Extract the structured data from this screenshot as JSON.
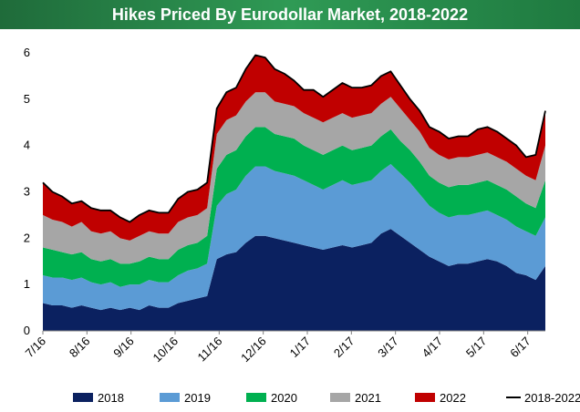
{
  "chart_data": {
    "type": "area",
    "stacked": true,
    "title": "Hikes Priced By Eurodollar Market, 2018-2022",
    "xlabel": "",
    "ylabel": "",
    "ylim": [
      0,
      6
    ],
    "yticks": [
      "0",
      "1",
      "2",
      "3",
      "4",
      "5",
      "6"
    ],
    "xticks": [
      "7/16",
      "8/16",
      "9/16",
      "10/16",
      "11/16",
      "12/16",
      "1/17",
      "2/17",
      "3/17",
      "4/17",
      "5/17",
      "6/17"
    ],
    "x": [
      "7/1",
      "7/8",
      "7/15",
      "7/22",
      "7/29",
      "8/5",
      "8/12",
      "8/19",
      "8/26",
      "9/2",
      "9/9",
      "9/16",
      "9/23",
      "9/30",
      "10/7",
      "10/14",
      "10/21",
      "10/28",
      "11/4",
      "11/11",
      "11/18",
      "11/25",
      "12/2",
      "12/9",
      "12/16",
      "12/23",
      "12/30",
      "1/6",
      "1/13",
      "1/20",
      "1/27",
      "2/3",
      "2/10",
      "2/17",
      "2/24",
      "3/3",
      "3/10",
      "3/17",
      "3/24",
      "3/31",
      "4/7",
      "4/14",
      "4/21",
      "4/28",
      "5/5",
      "5/12",
      "5/19",
      "5/26",
      "6/2",
      "6/9",
      "6/16",
      "6/23",
      "6/30"
    ],
    "series": [
      {
        "name": "2018",
        "color": "#0b2160",
        "values": [
          0.6,
          0.55,
          0.55,
          0.5,
          0.55,
          0.5,
          0.45,
          0.5,
          0.45,
          0.5,
          0.45,
          0.55,
          0.5,
          0.5,
          0.6,
          0.65,
          0.7,
          0.75,
          1.55,
          1.65,
          1.7,
          1.9,
          2.05,
          2.05,
          2.0,
          1.95,
          1.9,
          1.85,
          1.8,
          1.75,
          1.8,
          1.85,
          1.8,
          1.85,
          1.9,
          2.1,
          2.2,
          2.05,
          1.9,
          1.75,
          1.6,
          1.5,
          1.4,
          1.45,
          1.45,
          1.5,
          1.55,
          1.5,
          1.4,
          1.25,
          1.2,
          1.1,
          1.4
        ]
      },
      {
        "name": "2019",
        "color": "#5b9bd5",
        "values": [
          0.6,
          0.6,
          0.6,
          0.6,
          0.6,
          0.55,
          0.55,
          0.55,
          0.5,
          0.5,
          0.55,
          0.55,
          0.55,
          0.55,
          0.6,
          0.65,
          0.65,
          0.7,
          1.15,
          1.3,
          1.35,
          1.45,
          1.5,
          1.5,
          1.45,
          1.45,
          1.45,
          1.4,
          1.35,
          1.3,
          1.35,
          1.4,
          1.35,
          1.35,
          1.35,
          1.35,
          1.4,
          1.35,
          1.3,
          1.2,
          1.1,
          1.05,
          1.05,
          1.05,
          1.05,
          1.05,
          1.05,
          1.0,
          1.0,
          1.0,
          0.95,
          0.95,
          1.05
        ]
      },
      {
        "name": "2020",
        "color": "#00b050",
        "values": [
          0.6,
          0.6,
          0.55,
          0.55,
          0.55,
          0.5,
          0.5,
          0.5,
          0.5,
          0.45,
          0.5,
          0.5,
          0.5,
          0.5,
          0.55,
          0.55,
          0.55,
          0.6,
          0.8,
          0.85,
          0.85,
          0.85,
          0.85,
          0.85,
          0.8,
          0.8,
          0.8,
          0.75,
          0.75,
          0.75,
          0.75,
          0.75,
          0.75,
          0.75,
          0.75,
          0.75,
          0.75,
          0.7,
          0.7,
          0.7,
          0.65,
          0.65,
          0.65,
          0.65,
          0.65,
          0.65,
          0.65,
          0.65,
          0.65,
          0.65,
          0.6,
          0.6,
          0.8
        ]
      },
      {
        "name": "2021",
        "color": "#a6a6a6",
        "values": [
          0.7,
          0.65,
          0.65,
          0.6,
          0.65,
          0.6,
          0.6,
          0.6,
          0.55,
          0.5,
          0.55,
          0.55,
          0.55,
          0.55,
          0.6,
          0.6,
          0.6,
          0.6,
          0.75,
          0.75,
          0.75,
          0.75,
          0.75,
          0.75,
          0.7,
          0.7,
          0.7,
          0.7,
          0.7,
          0.7,
          0.7,
          0.7,
          0.7,
          0.7,
          0.7,
          0.7,
          0.7,
          0.7,
          0.65,
          0.65,
          0.6,
          0.6,
          0.6,
          0.6,
          0.6,
          0.6,
          0.6,
          0.6,
          0.6,
          0.6,
          0.6,
          0.6,
          0.75
        ]
      },
      {
        "name": "2022",
        "color": "#c00000",
        "values": [
          0.7,
          0.6,
          0.55,
          0.5,
          0.45,
          0.5,
          0.5,
          0.45,
          0.45,
          0.4,
          0.45,
          0.45,
          0.45,
          0.45,
          0.5,
          0.55,
          0.55,
          0.55,
          0.55,
          0.6,
          0.6,
          0.7,
          0.8,
          0.75,
          0.7,
          0.65,
          0.55,
          0.5,
          0.6,
          0.55,
          0.6,
          0.65,
          0.65,
          0.6,
          0.6,
          0.6,
          0.55,
          0.5,
          0.45,
          0.45,
          0.45,
          0.5,
          0.45,
          0.45,
          0.45,
          0.55,
          0.55,
          0.55,
          0.5,
          0.5,
          0.4,
          0.55,
          0.75
        ]
      }
    ],
    "total_line": {
      "name": "2018-2022",
      "color": "#000000"
    },
    "legend": {
      "position": "bottom",
      "entries": [
        {
          "label": "2018",
          "color": "#0b2160",
          "kind": "swatch"
        },
        {
          "label": "2019",
          "color": "#5b9bd5",
          "kind": "swatch"
        },
        {
          "label": "2020",
          "color": "#00b050",
          "kind": "swatch"
        },
        {
          "label": "2021",
          "color": "#a6a6a6",
          "kind": "swatch"
        },
        {
          "label": "2022",
          "color": "#c00000",
          "kind": "swatch"
        },
        {
          "label": "2018-2022",
          "color": "#000000",
          "kind": "line"
        }
      ]
    },
    "grid": false
  }
}
